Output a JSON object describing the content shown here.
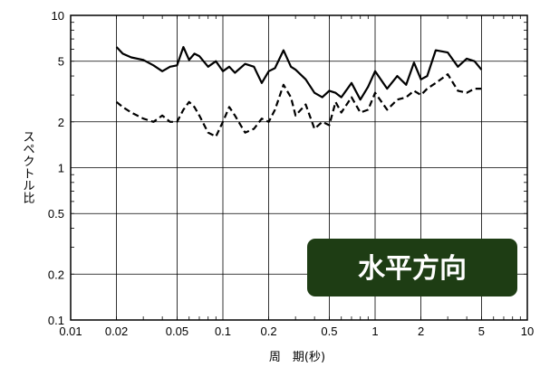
{
  "chart_data": {
    "type": "line",
    "xscale": "log",
    "yscale": "log",
    "xlim": [
      0.01,
      10
    ],
    "ylim": [
      0.1,
      10
    ],
    "xticks": [
      "0.01",
      "0.02",
      "0.05",
      "0.1",
      "0.2",
      "0.5",
      "1",
      "2",
      "5",
      "10"
    ],
    "xtick_values": [
      0.01,
      0.02,
      0.05,
      0.1,
      0.2,
      0.5,
      1,
      2,
      5,
      10
    ],
    "yticks": [
      "0.1",
      "0.2",
      "0.5",
      "1",
      "2",
      "5",
      "10"
    ],
    "ytick_values": [
      0.1,
      0.2,
      0.5,
      1,
      2,
      5,
      10
    ],
    "grid": true,
    "xlabel": "周　期(秒)",
    "ylabel": "スペクトル比",
    "annotation": "水平方向",
    "annotation_color": "#1e3d14",
    "series": [
      {
        "style": "solid",
        "color": "#000000",
        "x": [
          0.02,
          0.022,
          0.025,
          0.03,
          0.035,
          0.04,
          0.045,
          0.05,
          0.055,
          0.06,
          0.065,
          0.07,
          0.08,
          0.09,
          0.1,
          0.11,
          0.12,
          0.14,
          0.16,
          0.18,
          0.2,
          0.22,
          0.25,
          0.28,
          0.3,
          0.35,
          0.4,
          0.45,
          0.5,
          0.55,
          0.6,
          0.7,
          0.8,
          0.9,
          1.0,
          1.2,
          1.4,
          1.6,
          1.8,
          2.0,
          2.2,
          2.5,
          3.0,
          3.5,
          4.0,
          4.5,
          5.0
        ],
        "y": [
          6.2,
          5.6,
          5.3,
          5.1,
          4.7,
          4.3,
          4.6,
          4.7,
          6.2,
          5.1,
          5.6,
          5.4,
          4.6,
          5.0,
          4.3,
          4.6,
          4.2,
          4.8,
          4.6,
          3.6,
          4.3,
          4.5,
          5.9,
          4.6,
          4.4,
          3.8,
          3.1,
          2.9,
          3.2,
          3.1,
          2.9,
          3.6,
          2.8,
          3.4,
          4.3,
          3.3,
          4.0,
          3.5,
          4.9,
          3.8,
          4.0,
          5.9,
          5.7,
          4.6,
          5.2,
          5.0,
          4.4
        ]
      },
      {
        "style": "dashed",
        "color": "#000000",
        "x": [
          0.02,
          0.022,
          0.025,
          0.03,
          0.035,
          0.04,
          0.045,
          0.05,
          0.055,
          0.06,
          0.065,
          0.07,
          0.08,
          0.09,
          0.1,
          0.11,
          0.12,
          0.14,
          0.16,
          0.18,
          0.2,
          0.22,
          0.25,
          0.28,
          0.3,
          0.35,
          0.4,
          0.45,
          0.5,
          0.55,
          0.6,
          0.7,
          0.8,
          0.9,
          1.0,
          1.2,
          1.4,
          1.6,
          1.8,
          2.0,
          2.2,
          2.5,
          3.0,
          3.5,
          4.0,
          4.5,
          5.0
        ],
        "y": [
          2.7,
          2.5,
          2.3,
          2.1,
          2.0,
          2.2,
          2.0,
          2.0,
          2.4,
          2.7,
          2.5,
          2.2,
          1.7,
          1.6,
          2.0,
          2.5,
          2.2,
          1.7,
          1.8,
          2.1,
          2.0,
          2.4,
          3.5,
          2.9,
          2.2,
          2.6,
          1.8,
          2.0,
          1.9,
          2.7,
          2.3,
          2.9,
          2.3,
          2.4,
          3.1,
          2.4,
          2.8,
          2.9,
          3.2,
          3.0,
          3.3,
          3.6,
          4.1,
          3.2,
          3.1,
          3.3,
          3.3
        ]
      }
    ]
  }
}
